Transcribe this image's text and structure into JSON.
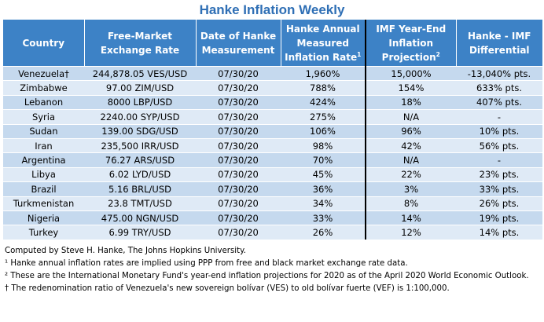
{
  "title": "Hanke Inflation Weekly",
  "headers": {
    "country": "Country",
    "rate": "Free-Market Exchange Rate",
    "date": "Date of Hanke Measurement",
    "hanke": "Hanke Annual Measured Inflation Rate",
    "hanke_sup": "1",
    "imf": "IMF Year-End Inflation Projection",
    "imf_sup": "2",
    "diff": "Hanke - IMF Differential"
  },
  "rows": [
    {
      "country": "Venezuela†",
      "rate": "244,878.05 VES/USD",
      "date": "07/30/20",
      "hanke": "1,960%",
      "imf": "15,000%",
      "diff": "-13,040% pts."
    },
    {
      "country": "Zimbabwe",
      "rate": "97.00 ZIM/USD",
      "date": "07/30/20",
      "hanke": "788%",
      "imf": "154%",
      "diff": "633% pts."
    },
    {
      "country": "Lebanon",
      "rate": "8000 LBP/USD",
      "date": "07/30/20",
      "hanke": "424%",
      "imf": "18%",
      "diff": "407% pts."
    },
    {
      "country": "Syria",
      "rate": "2240.00 SYP/USD",
      "date": "07/30/20",
      "hanke": "275%",
      "imf": "N/A",
      "diff": "-"
    },
    {
      "country": "Sudan",
      "rate": "139.00 SDG/USD",
      "date": "07/30/20",
      "hanke": "106%",
      "imf": "96%",
      "diff": "10% pts."
    },
    {
      "country": "Iran",
      "rate": "235,500 IRR/USD",
      "date": "07/30/20",
      "hanke": "98%",
      "imf": "42%",
      "diff": "56% pts."
    },
    {
      "country": "Argentina",
      "rate": "76.27 ARS/USD",
      "date": "07/30/20",
      "hanke": "70%",
      "imf": "N/A",
      "diff": "-"
    },
    {
      "country": "Libya",
      "rate": "6.02 LYD/USD",
      "date": "07/30/20",
      "hanke": "45%",
      "imf": "22%",
      "diff": "23% pts."
    },
    {
      "country": "Brazil",
      "rate": "5.16 BRL/USD",
      "date": "07/30/20",
      "hanke": "36%",
      "imf": "3%",
      "diff": "33% pts."
    },
    {
      "country": "Turkmenistan",
      "rate": "23.8 TMT/USD",
      "date": "07/30/20",
      "hanke": "34%",
      "imf": "8%",
      "diff": "26% pts."
    },
    {
      "country": "Nigeria",
      "rate": "475.00 NGN/USD",
      "date": "07/30/20",
      "hanke": "33%",
      "imf": "14%",
      "diff": "19% pts."
    },
    {
      "country": "Turkey",
      "rate": "6.99 TRY/USD",
      "date": "07/30/20",
      "hanke": "26%",
      "imf": "12%",
      "diff": "14% pts."
    }
  ],
  "notes": {
    "computed": "Computed by Steve H. Hanke, The Johns Hopkins University.",
    "note1": "¹ Hanke annual inflation rates are implied using PPP from free and black market exchange rate data.",
    "note2": "² These are the International Monetary Fund's year-end inflation projections for 2020 as of the April 2020 World Economic Outlook.",
    "note3": "† The redenomination ratio of Venezuela's new sovereign bolívar (VES) to old bolívar fuerte (VEF) is 1:100,000."
  }
}
